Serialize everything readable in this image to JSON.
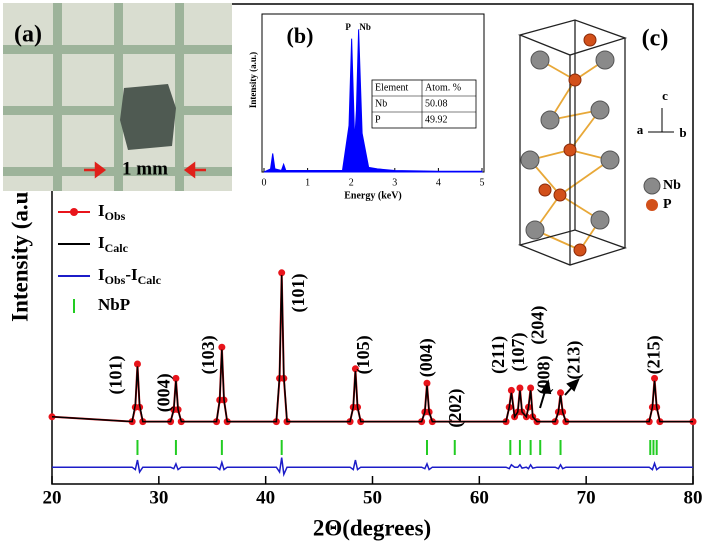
{
  "chart_data": [
    {
      "type": "xrd",
      "x_label": "2Θ(degrees)",
      "y_label": "Intensity (a.u.)",
      "xlim": [
        20,
        80
      ],
      "xticks": [
        20,
        30,
        40,
        50,
        60,
        70,
        80
      ],
      "ylim": [
        0,
        100
      ],
      "x": [
        20,
        27.5,
        27.8,
        28,
        28.2,
        28.5,
        31.1,
        31.4,
        31.6,
        31.8,
        32.1,
        35.4,
        35.7,
        35.9,
        36.1,
        36.4,
        41.0,
        41.3,
        41.5,
        41.7,
        42.0,
        47.9,
        48.2,
        48.4,
        48.6,
        48.9,
        54.6,
        54.9,
        55.1,
        55.3,
        55.6,
        62.5,
        62.8,
        63.0,
        63.3,
        63.6,
        63.8,
        64.0,
        64.4,
        64.6,
        64.8,
        65.0,
        65.4,
        67.1,
        67.4,
        67.6,
        67.8,
        68.1,
        75.9,
        76.2,
        76.4,
        76.6,
        76.9,
        80
      ],
      "series": [
        {
          "name": [
            "I",
            "Obs"
          ],
          "color": "#e8141b",
          "marker": "circle",
          "values": [
            14,
            13,
            16,
            25,
            16,
            13,
            13,
            15.5,
            22,
            15.5,
            13,
            13,
            17.5,
            28.5,
            17.5,
            13,
            13,
            22,
            44,
            22,
            13,
            13,
            16,
            24,
            16,
            13,
            13,
            15,
            21,
            15,
            13,
            13,
            16,
            19.5,
            14,
            15,
            20,
            15,
            14,
            16,
            20,
            14,
            13,
            13,
            15,
            19,
            15,
            13,
            13,
            16,
            22,
            16,
            13,
            13
          ]
        },
        {
          "name": [
            "I",
            "Calc"
          ],
          "color": "#000000",
          "values": [
            14,
            13,
            16.5,
            24.5,
            16.5,
            13,
            13,
            15.5,
            21.5,
            15.5,
            13,
            13,
            17.5,
            28,
            17.5,
            13,
            13,
            22.5,
            43.5,
            22.5,
            13,
            13,
            16,
            23.5,
            16,
            13,
            13,
            15,
            20.5,
            15,
            13,
            13,
            16,
            19,
            14,
            15,
            19.5,
            15,
            14,
            16,
            19.5,
            14,
            13,
            13,
            15,
            18.5,
            15,
            13,
            13,
            16,
            21.5,
            16,
            13,
            13
          ]
        },
        {
          "name": [
            "I",
            "Obs",
            "-I",
            "Calc"
          ],
          "color": "#1c1cc8",
          "values": [
            3.5,
            3.5,
            3,
            5,
            2.5,
            3.5,
            3.5,
            3.2,
            4.2,
            3,
            3.5,
            3.5,
            3,
            4.5,
            3,
            3.5,
            3.5,
            2.5,
            5.5,
            2,
            3.5,
            3.5,
            3,
            5,
            3,
            3.5,
            3.5,
            3.2,
            4.2,
            3,
            3.5,
            3.5,
            3.2,
            4,
            3.5,
            3.5,
            4,
            3.3,
            3.5,
            3.2,
            4,
            3.3,
            3.5,
            3.5,
            3.2,
            4,
            3.2,
            3.5,
            3.5,
            3,
            4.3,
            3,
            3.5,
            3.5
          ]
        }
      ],
      "reflections": {
        "name": "NbP",
        "color": "#22cc22",
        "x": [
          28.0,
          31.6,
          35.9,
          41.5,
          55.1,
          57.7,
          62.9,
          63.8,
          64.8,
          65.7,
          67.6,
          76.0,
          76.3,
          76.6
        ]
      },
      "annotations": [
        {
          "text": "(101)",
          "x": 26.1,
          "y": 22.7
        },
        {
          "text": "(004)",
          "x": 30.6,
          "y": 19
        },
        {
          "text": "(103)",
          "x": 34.8,
          "y": 26.9
        },
        {
          "text": "(101)",
          "x": 43.2,
          "y": 39.8
        },
        {
          "text": "(105)",
          "x": 49.3,
          "y": 26.9
        },
        {
          "text": "(004)",
          "x": 55.2,
          "y": 26.3
        },
        {
          "text": "(202)",
          "x": 57.9,
          "y": 15.8
        },
        {
          "text": "(211)",
          "x": 61.9,
          "y": 26.9
        },
        {
          "text": "(107)",
          "x": 63.8,
          "y": 27.5
        },
        {
          "text": "(204)",
          "x": 65.6,
          "y": 33.1
        },
        {
          "text": "(008)",
          "x": 66.2,
          "y": 22.7
        },
        {
          "text": "(213)",
          "x": 69.0,
          "y": 25.8
        },
        {
          "text": "(215)",
          "x": 76.5,
          "y": 26.9
        }
      ]
    },
    {
      "type": "area",
      "panel_label": "(b)",
      "x_label": "Energy (keV)",
      "y_label": "Intensity (a.u.)",
      "xlim": [
        0,
        5
      ],
      "xticks": [
        0,
        1,
        2,
        3,
        4,
        5
      ],
      "ylim": [
        0,
        100
      ],
      "color": "#0000ff",
      "x": [
        0,
        0.15,
        0.2,
        0.25,
        0.4,
        0.45,
        0.5,
        1.0,
        1.8,
        1.95,
        2.01,
        2.08,
        2.12,
        2.17,
        2.25,
        2.4,
        2.6,
        3,
        4,
        5
      ],
      "values": [
        0,
        2,
        12,
        2,
        1,
        5,
        1,
        1,
        1,
        30,
        86,
        20,
        40,
        92,
        25,
        3,
        2,
        1,
        0.5,
        0.5
      ],
      "annotations": [
        {
          "text": "P",
          "x": 1.93,
          "y": 93
        },
        {
          "text": "Nb",
          "x": 2.32,
          "y": 93
        }
      ],
      "table": {
        "header": [
          "Element",
          "Atom. %"
        ],
        "rows": [
          [
            "Nb",
            50.08
          ],
          [
            "P",
            49.92
          ]
        ]
      }
    }
  ],
  "inset_a": {
    "label": "(a)",
    "scale_bar": "1 mm"
  },
  "inset_c": {
    "label": "(c)",
    "axes": [
      "c",
      "a",
      "b"
    ],
    "legend": [
      "Nb",
      "P"
    ]
  }
}
